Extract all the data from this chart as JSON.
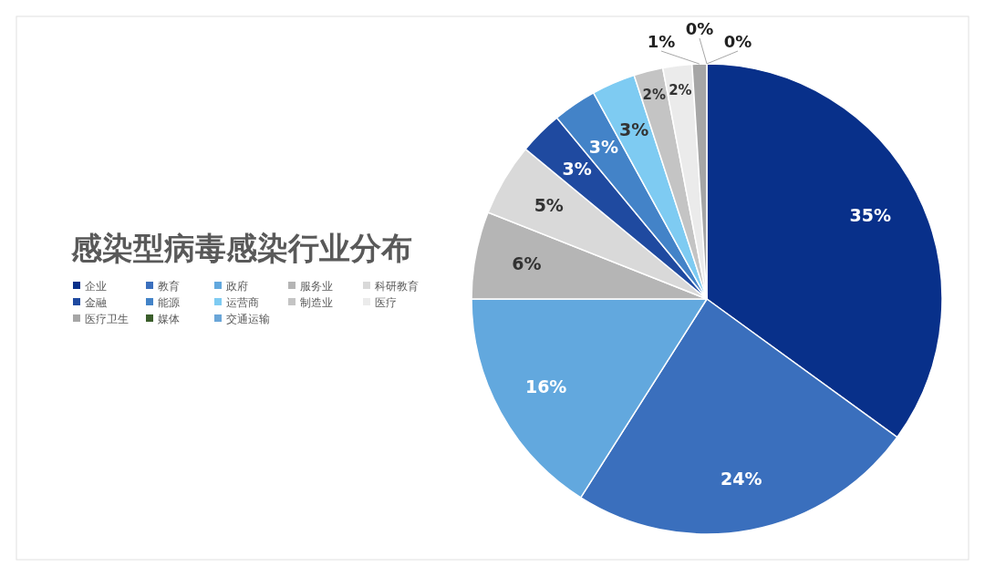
{
  "chart_data": {
    "type": "pie",
    "title": "感染型病毒感染行业分布",
    "categories": [
      "企业",
      "教育",
      "政府",
      "服务业",
      "科研教育",
      "金融",
      "能源",
      "运营商",
      "制造业",
      "医疗",
      "医疗卫生",
      "媒体",
      "交通运输"
    ],
    "values": [
      35,
      24,
      16,
      6,
      5,
      3,
      3,
      3,
      2,
      2,
      1,
      0,
      0
    ],
    "colors": [
      "#08308a",
      "#3a6fbd",
      "#62a8de",
      "#b5b5b5",
      "#d9d9d9",
      "#1f4aa0",
      "#4383c8",
      "#7ecbf2",
      "#c4c4c4",
      "#ebebeb",
      "#a6a6a6",
      "#3b5e2b",
      "#6aa6d8"
    ],
    "value_labels": [
      "35%",
      "24%",
      "16%",
      "6%",
      "5%",
      "3%",
      "3%",
      "3%",
      "2%",
      "2%",
      "1%",
      "0%",
      "0%"
    ],
    "legend": "left"
  }
}
